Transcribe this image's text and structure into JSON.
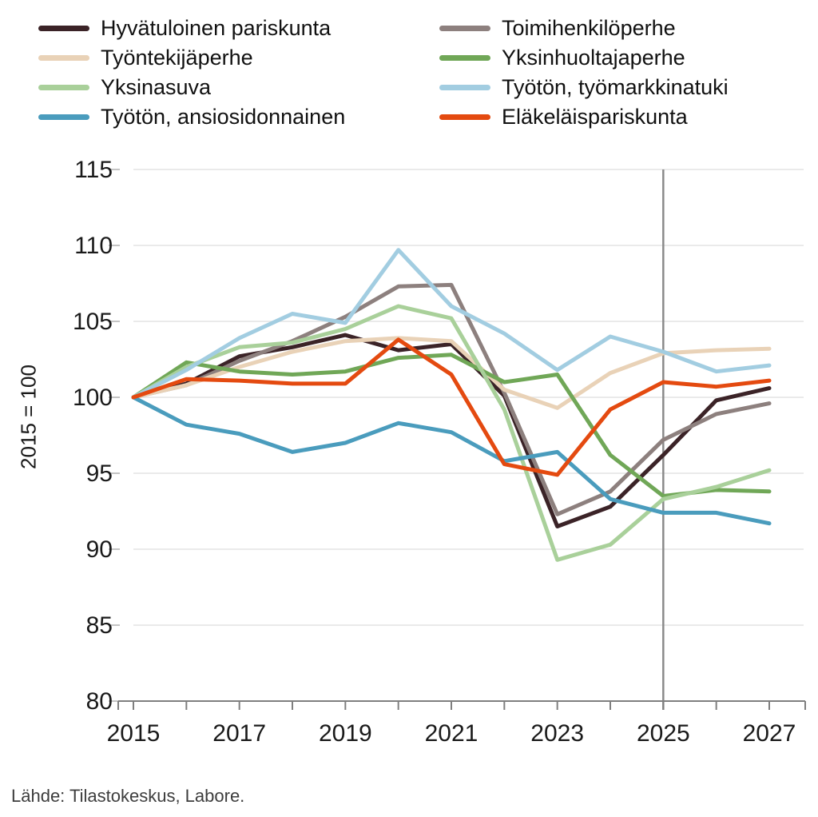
{
  "chart_data": {
    "type": "line",
    "title": "",
    "ylabel": "2015 = 100",
    "ylim": [
      80,
      115
    ],
    "yticks": [
      80,
      85,
      90,
      95,
      100,
      105,
      110,
      115
    ],
    "xticks": [
      2015,
      2017,
      2019,
      2021,
      2023,
      2025,
      2027
    ],
    "x": [
      2015,
      2016,
      2017,
      2018,
      2019,
      2020,
      2021,
      2022,
      2023,
      2024,
      2025,
      2026,
      2027
    ],
    "grid": true,
    "legend_position": "top",
    "reference_line_x": 2025,
    "series": [
      {
        "name": "Hyvätuloinen pariskunta",
        "color": "#3b2327",
        "values": [
          100,
          100.9,
          102.7,
          103.3,
          104.1,
          103.1,
          103.5,
          100.1,
          91.5,
          92.8,
          96.2,
          99.8,
          100.6
        ]
      },
      {
        "name": "Toimihenkilöperhe",
        "color": "#8d807e",
        "values": [
          100,
          100.8,
          102.4,
          103.7,
          105.3,
          107.3,
          107.4,
          100.3,
          92.3,
          93.8,
          97.2,
          98.9,
          99.6
        ]
      },
      {
        "name": "Työntekijäperhe",
        "color": "#e9d2b7",
        "values": [
          100,
          100.8,
          102.0,
          103.0,
          103.7,
          103.9,
          103.7,
          100.5,
          99.3,
          101.6,
          102.9,
          103.1,
          103.2
        ]
      },
      {
        "name": "Yksinhuoltajaperhe",
        "color": "#70a757",
        "values": [
          100,
          102.3,
          101.7,
          101.5,
          101.7,
          102.6,
          102.8,
          101.0,
          101.5,
          96.2,
          93.5,
          93.9,
          93.8
        ]
      },
      {
        "name": "Yksinasuva",
        "color": "#a9d09a",
        "values": [
          100,
          102.0,
          103.3,
          103.6,
          104.5,
          106.0,
          105.2,
          99.2,
          89.3,
          90.3,
          93.3,
          94.1,
          95.2
        ]
      },
      {
        "name": "Työtön, työmarkkinatuki",
        "color": "#a2cde1",
        "values": [
          100,
          101.8,
          103.9,
          105.5,
          104.9,
          109.7,
          106.0,
          104.2,
          101.8,
          104.0,
          103.0,
          101.7,
          102.1
        ]
      },
      {
        "name": "Työtön, ansiosidonnainen",
        "color": "#4a9cbd",
        "values": [
          100,
          98.2,
          97.6,
          96.4,
          97.0,
          98.3,
          97.7,
          95.8,
          96.4,
          93.3,
          92.4,
          92.4,
          91.7
        ]
      },
      {
        "name": "Eläkeläispariskunta",
        "color": "#e44a10",
        "values": [
          100,
          101.2,
          101.1,
          100.9,
          100.9,
          103.8,
          101.5,
          95.6,
          94.9,
          99.2,
          101.0,
          100.7,
          101.1
        ]
      }
    ]
  },
  "source": {
    "text": "Lähde: Tilastokeskus, Labore."
  },
  "axis_colors": {
    "grid": "#e3e3e3",
    "axis": "#7f7f7f",
    "reference_line": "#8a8a8a",
    "tick_label": "#1a1a1a",
    "minor_tick": "#b0b0b0"
  }
}
